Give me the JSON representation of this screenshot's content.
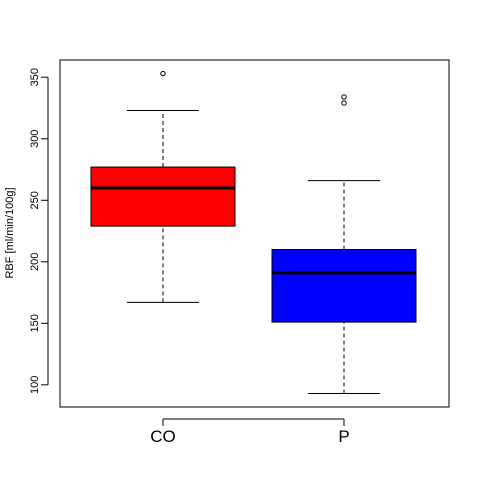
{
  "chart_data": {
    "type": "boxplot",
    "ylabel": "RBF [ml/min/100g]",
    "ylim": [
      82,
      364
    ],
    "yticks": [
      100,
      150,
      200,
      250,
      300,
      350
    ],
    "categories": [
      "CO",
      "P"
    ],
    "series": [
      {
        "category": "CO",
        "color": "#ff0000",
        "whisker_low": 167,
        "q1": 229,
        "median": 260,
        "q3": 277,
        "whisker_high": 323,
        "outliers": [
          353
        ]
      },
      {
        "category": "P",
        "color": "#0000ff",
        "whisker_low": 93,
        "q1": 151,
        "median": 191,
        "q3": 210,
        "whisker_high": 266,
        "outliers": [
          329,
          334
        ]
      }
    ]
  }
}
